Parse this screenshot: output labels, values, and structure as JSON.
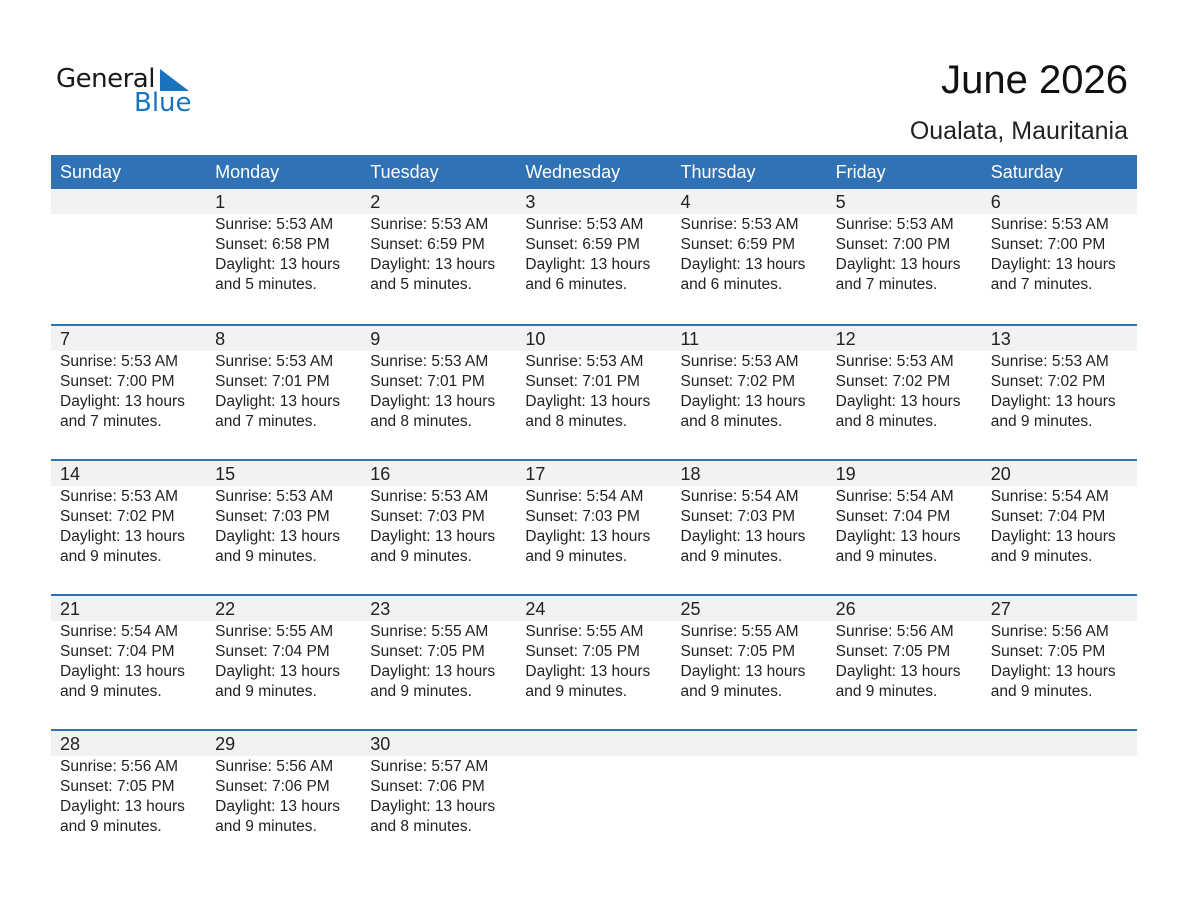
{
  "logo": {
    "word1": "General",
    "word2": "Blue"
  },
  "header": {
    "title": "June 2026",
    "location": "Oualata, Mauritania"
  },
  "colors": {
    "accent": "#2f72b5",
    "band": "#f2f2f2",
    "logo_blue": "#1a73c0"
  },
  "weekdays": [
    "Sunday",
    "Monday",
    "Tuesday",
    "Wednesday",
    "Thursday",
    "Friday",
    "Saturday"
  ],
  "weeks": [
    [
      null,
      {
        "day": "1",
        "sunrise": "Sunrise: 5:53 AM",
        "sunset": "Sunset: 6:58 PM",
        "daylight": "Daylight: 13 hours",
        "minutes": "and 5 minutes."
      },
      {
        "day": "2",
        "sunrise": "Sunrise: 5:53 AM",
        "sunset": "Sunset: 6:59 PM",
        "daylight": "Daylight: 13 hours",
        "minutes": "and 5 minutes."
      },
      {
        "day": "3",
        "sunrise": "Sunrise: 5:53 AM",
        "sunset": "Sunset: 6:59 PM",
        "daylight": "Daylight: 13 hours",
        "minutes": "and 6 minutes."
      },
      {
        "day": "4",
        "sunrise": "Sunrise: 5:53 AM",
        "sunset": "Sunset: 6:59 PM",
        "daylight": "Daylight: 13 hours",
        "minutes": "and 6 minutes."
      },
      {
        "day": "5",
        "sunrise": "Sunrise: 5:53 AM",
        "sunset": "Sunset: 7:00 PM",
        "daylight": "Daylight: 13 hours",
        "minutes": "and 7 minutes."
      },
      {
        "day": "6",
        "sunrise": "Sunrise: 5:53 AM",
        "sunset": "Sunset: 7:00 PM",
        "daylight": "Daylight: 13 hours",
        "minutes": "and 7 minutes."
      }
    ],
    [
      {
        "day": "7",
        "sunrise": "Sunrise: 5:53 AM",
        "sunset": "Sunset: 7:00 PM",
        "daylight": "Daylight: 13 hours",
        "minutes": "and 7 minutes."
      },
      {
        "day": "8",
        "sunrise": "Sunrise: 5:53 AM",
        "sunset": "Sunset: 7:01 PM",
        "daylight": "Daylight: 13 hours",
        "minutes": "and 7 minutes."
      },
      {
        "day": "9",
        "sunrise": "Sunrise: 5:53 AM",
        "sunset": "Sunset: 7:01 PM",
        "daylight": "Daylight: 13 hours",
        "minutes": "and 8 minutes."
      },
      {
        "day": "10",
        "sunrise": "Sunrise: 5:53 AM",
        "sunset": "Sunset: 7:01 PM",
        "daylight": "Daylight: 13 hours",
        "minutes": "and 8 minutes."
      },
      {
        "day": "11",
        "sunrise": "Sunrise: 5:53 AM",
        "sunset": "Sunset: 7:02 PM",
        "daylight": "Daylight: 13 hours",
        "minutes": "and 8 minutes."
      },
      {
        "day": "12",
        "sunrise": "Sunrise: 5:53 AM",
        "sunset": "Sunset: 7:02 PM",
        "daylight": "Daylight: 13 hours",
        "minutes": "and 8 minutes."
      },
      {
        "day": "13",
        "sunrise": "Sunrise: 5:53 AM",
        "sunset": "Sunset: 7:02 PM",
        "daylight": "Daylight: 13 hours",
        "minutes": "and 9 minutes."
      }
    ],
    [
      {
        "day": "14",
        "sunrise": "Sunrise: 5:53 AM",
        "sunset": "Sunset: 7:02 PM",
        "daylight": "Daylight: 13 hours",
        "minutes": "and 9 minutes."
      },
      {
        "day": "15",
        "sunrise": "Sunrise: 5:53 AM",
        "sunset": "Sunset: 7:03 PM",
        "daylight": "Daylight: 13 hours",
        "minutes": "and 9 minutes."
      },
      {
        "day": "16",
        "sunrise": "Sunrise: 5:53 AM",
        "sunset": "Sunset: 7:03 PM",
        "daylight": "Daylight: 13 hours",
        "minutes": "and 9 minutes."
      },
      {
        "day": "17",
        "sunrise": "Sunrise: 5:54 AM",
        "sunset": "Sunset: 7:03 PM",
        "daylight": "Daylight: 13 hours",
        "minutes": "and 9 minutes."
      },
      {
        "day": "18",
        "sunrise": "Sunrise: 5:54 AM",
        "sunset": "Sunset: 7:03 PM",
        "daylight": "Daylight: 13 hours",
        "minutes": "and 9 minutes."
      },
      {
        "day": "19",
        "sunrise": "Sunrise: 5:54 AM",
        "sunset": "Sunset: 7:04 PM",
        "daylight": "Daylight: 13 hours",
        "minutes": "and 9 minutes."
      },
      {
        "day": "20",
        "sunrise": "Sunrise: 5:54 AM",
        "sunset": "Sunset: 7:04 PM",
        "daylight": "Daylight: 13 hours",
        "minutes": "and 9 minutes."
      }
    ],
    [
      {
        "day": "21",
        "sunrise": "Sunrise: 5:54 AM",
        "sunset": "Sunset: 7:04 PM",
        "daylight": "Daylight: 13 hours",
        "minutes": "and 9 minutes."
      },
      {
        "day": "22",
        "sunrise": "Sunrise: 5:55 AM",
        "sunset": "Sunset: 7:04 PM",
        "daylight": "Daylight: 13 hours",
        "minutes": "and 9 minutes."
      },
      {
        "day": "23",
        "sunrise": "Sunrise: 5:55 AM",
        "sunset": "Sunset: 7:05 PM",
        "daylight": "Daylight: 13 hours",
        "minutes": "and 9 minutes."
      },
      {
        "day": "24",
        "sunrise": "Sunrise: 5:55 AM",
        "sunset": "Sunset: 7:05 PM",
        "daylight": "Daylight: 13 hours",
        "minutes": "and 9 minutes."
      },
      {
        "day": "25",
        "sunrise": "Sunrise: 5:55 AM",
        "sunset": "Sunset: 7:05 PM",
        "daylight": "Daylight: 13 hours",
        "minutes": "and 9 minutes."
      },
      {
        "day": "26",
        "sunrise": "Sunrise: 5:56 AM",
        "sunset": "Sunset: 7:05 PM",
        "daylight": "Daylight: 13 hours",
        "minutes": "and 9 minutes."
      },
      {
        "day": "27",
        "sunrise": "Sunrise: 5:56 AM",
        "sunset": "Sunset: 7:05 PM",
        "daylight": "Daylight: 13 hours",
        "minutes": "and 9 minutes."
      }
    ],
    [
      {
        "day": "28",
        "sunrise": "Sunrise: 5:56 AM",
        "sunset": "Sunset: 7:05 PM",
        "daylight": "Daylight: 13 hours",
        "minutes": "and 9 minutes."
      },
      {
        "day": "29",
        "sunrise": "Sunrise: 5:56 AM",
        "sunset": "Sunset: 7:06 PM",
        "daylight": "Daylight: 13 hours",
        "minutes": "and 9 minutes."
      },
      {
        "day": "30",
        "sunrise": "Sunrise: 5:57 AM",
        "sunset": "Sunset: 7:06 PM",
        "daylight": "Daylight: 13 hours",
        "minutes": "and 8 minutes."
      },
      null,
      null,
      null,
      null
    ]
  ]
}
